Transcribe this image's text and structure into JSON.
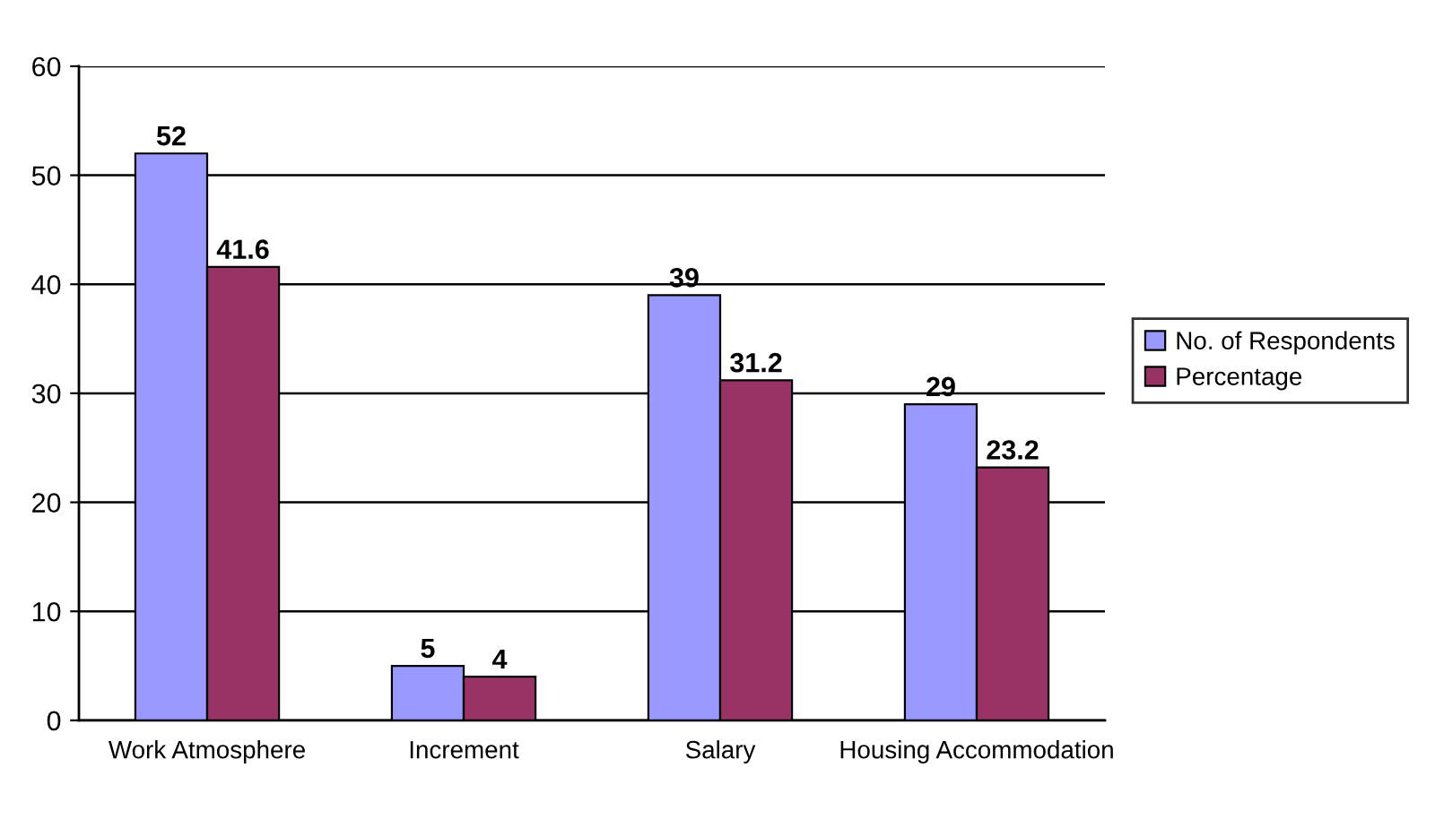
{
  "chart_data": {
    "type": "bar",
    "categories": [
      "Work Atmosphere",
      "Increment",
      "Salary",
      "Housing Accommodation"
    ],
    "series": [
      {
        "name": "No. of Respondents",
        "color": "#9999ff",
        "values": [
          52,
          5,
          39,
          29
        ]
      },
      {
        "name": "Percentage",
        "color": "#993366",
        "values": [
          41.6,
          4,
          31.2,
          23.2
        ]
      }
    ],
    "ylim": [
      0,
      60
    ],
    "yticks": [
      0,
      10,
      20,
      30,
      40,
      50,
      60
    ],
    "grid": "y",
    "legend": "right",
    "data_labels": true
  }
}
